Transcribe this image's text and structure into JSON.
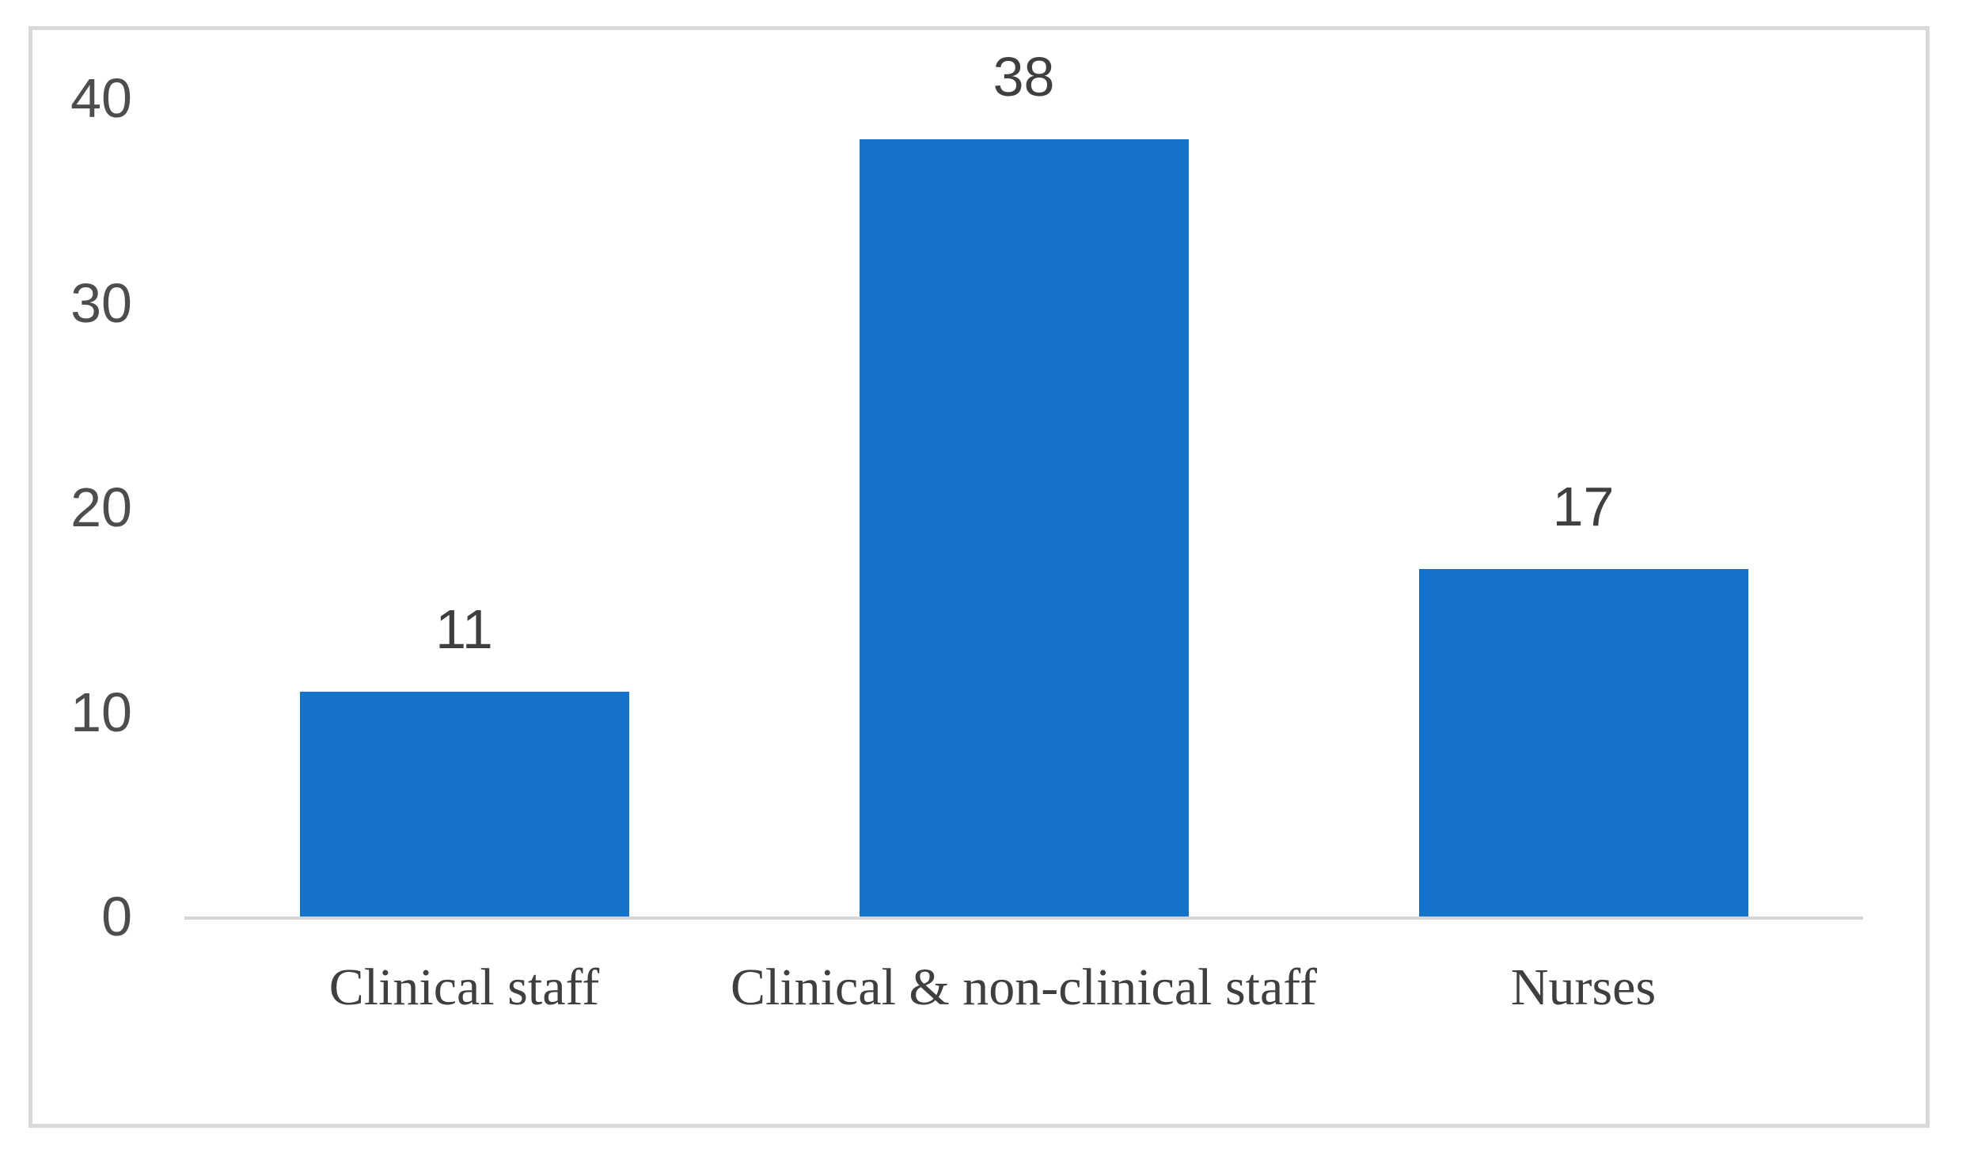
{
  "chart_data": {
    "type": "bar",
    "categories": [
      "Clinical staff",
      "Clinical & non-clinical staff",
      "Nurses"
    ],
    "values": [
      11,
      38,
      17
    ],
    "data_labels": [
      "11",
      "38",
      "17"
    ],
    "yticks": [
      0,
      10,
      20,
      30,
      40
    ],
    "ytick_labels": [
      "0",
      "10",
      "20",
      "30",
      "40"
    ],
    "ylim": [
      0,
      40
    ],
    "title": "",
    "xlabel": "",
    "ylabel": "",
    "grid": false,
    "legend": "none",
    "bar_color": "#1673c9",
    "axis_line_color": "#d6d6d6",
    "tick_label_color": "#4d4d4d",
    "data_label_color": "#3f3f3f",
    "category_label_color": "#3f3f3f",
    "frame_border_color": "#d9d9d9",
    "background_color": "#ffffff"
  }
}
